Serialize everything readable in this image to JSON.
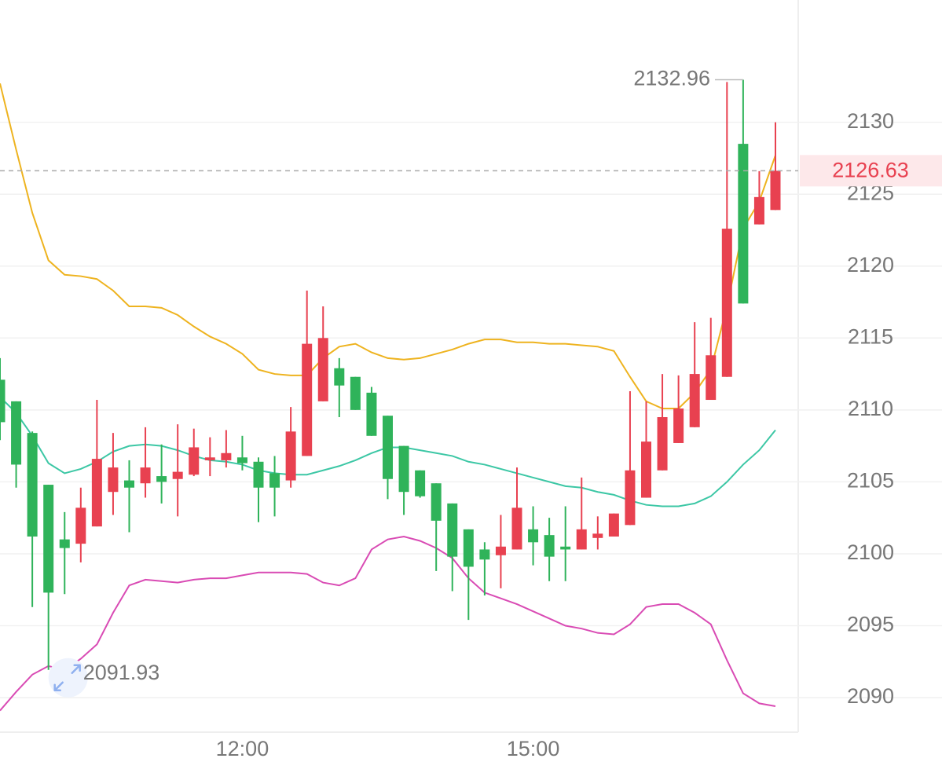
{
  "chart_data": {
    "type": "candlestick",
    "categories": [
      null,
      null,
      null,
      null,
      null,
      null,
      null,
      null,
      null,
      null,
      null,
      null,
      null,
      null,
      null,
      "12:00",
      null,
      null,
      null,
      null,
      null,
      null,
      null,
      null,
      null,
      null,
      null,
      null,
      null,
      null,
      null,
      null,
      null,
      "15:00",
      null,
      null,
      null,
      null,
      null,
      null,
      null,
      null,
      null,
      null,
      null,
      null,
      null,
      null,
      null
    ],
    "open": [
      2112.1,
      2110.6,
      2108.4,
      2104.8,
      2101.0,
      2100.7,
      2101.9,
      2104.3,
      2105.1,
      2104.9,
      2105.4,
      2105.2,
      2105.5,
      2106.5,
      2106.5,
      2106.7,
      2106.4,
      2105.6,
      2105.1,
      2106.8,
      2110.6,
      2112.9,
      2112.3,
      2111.2,
      2109.6,
      2107.5,
      2105.8,
      2104.9,
      2103.5,
      2101.7,
      2100.3,
      2099.9,
      2100.3,
      2101.7,
      2101.3,
      2100.5,
      2100.3,
      2101.1,
      2101.2,
      2102.0,
      2103.9,
      2105.8,
      2107.7,
      2108.8,
      2110.7,
      2112.3,
      2128.5,
      2122.9,
      2123.9
    ],
    "high": [
      2113.6,
      2110.6,
      2108.5,
      2104.8,
      2102.9,
      2104.6,
      2110.7,
      2108.4,
      2106.5,
      2108.8,
      2107.6,
      2109.0,
      2108.7,
      2108.1,
      2108.6,
      2108.2,
      2106.7,
      2106.8,
      2110.2,
      2118.3,
      2117.2,
      2113.6,
      2112.3,
      2111.6,
      2109.6,
      2107.5,
      2105.8,
      2104.9,
      2103.5,
      2101.7,
      2100.8,
      2102.7,
      2106.0,
      2103.3,
      2102.5,
      2103.3,
      2105.3,
      2102.6,
      2102.8,
      2111.3,
      2110.6,
      2112.5,
      2112.4,
      2116.1,
      2116.4,
      2132.8,
      2132.96,
      2126.6,
      2130.0
    ],
    "low": [
      2107.9,
      2104.6,
      2096.3,
      2091.93,
      2097.2,
      2099.4,
      2101.9,
      2102.7,
      2101.5,
      2103.9,
      2103.5,
      2102.6,
      2105.4,
      2105.4,
      2106.0,
      2105.8,
      2102.2,
      2102.6,
      2104.6,
      2106.8,
      2110.6,
      2109.5,
      2110.0,
      2108.2,
      2103.8,
      2102.7,
      2103.9,
      2098.8,
      2097.4,
      2095.4,
      2097.1,
      2097.6,
      2100.3,
      2099.2,
      2098.1,
      2098.1,
      2100.3,
      2100.3,
      2101.2,
      2102.0,
      2103.9,
      2105.8,
      2107.7,
      2108.8,
      2110.7,
      2112.3,
      2117.4,
      2122.9,
      2123.9
    ],
    "close": [
      2109.15,
      2106.2,
      2101.2,
      2097.3,
      2100.4,
      2103.2,
      2106.6,
      2106.0,
      2104.6,
      2106.0,
      2105.0,
      2105.7,
      2107.4,
      2106.7,
      2107.0,
      2106.3,
      2104.6,
      2104.6,
      2108.5,
      2114.6,
      2115.0,
      2111.7,
      2110.0,
      2108.2,
      2105.2,
      2104.3,
      2104.0,
      2102.3,
      2099.8,
      2099.1,
      2099.6,
      2100.5,
      2103.2,
      2100.8,
      2099.8,
      2100.3,
      2101.7,
      2101.4,
      2102.8,
      2105.8,
      2107.8,
      2109.5,
      2110.1,
      2112.5,
      2113.8,
      2122.6,
      2117.4,
      2124.8,
      2126.63
    ],
    "up_color": "#e84150",
    "down_color": "#2fb35a",
    "lines": [
      {
        "color": "#eeb31f",
        "values": [
          2132.7,
          2128.1,
          2123.7,
          2120.4,
          2119.4,
          2119.3,
          2119.1,
          2118.3,
          2117.2,
          2117.2,
          2117.1,
          2116.6,
          2115.8,
          2115.1,
          2114.6,
          2113.9,
          2112.8,
          2112.5,
          2112.4,
          2112.4,
          2113.6,
          2114.4,
          2114.6,
          2114.0,
          2113.6,
          2113.5,
          2113.6,
          2113.9,
          2114.2,
          2114.6,
          2114.9,
          2114.9,
          2114.7,
          2114.7,
          2114.6,
          2114.6,
          2114.5,
          2114.4,
          2114.1,
          2112.3,
          2110.6,
          2110.1,
          2110.1,
          2111.2,
          2112.8,
          2117.2,
          2122.6,
          2124.5,
          2127.7
        ]
      },
      {
        "color": "#3cc7a5",
        "values": [
          2110.9,
          2109.8,
          2108.2,
          2106.3,
          2105.6,
          2105.9,
          2106.4,
          2107.1,
          2107.5,
          2107.6,
          2107.5,
          2107.2,
          2106.8,
          2106.5,
          2106.4,
          2106.2,
          2105.8,
          2105.6,
          2105.5,
          2105.5,
          2105.8,
          2106.1,
          2106.5,
          2107.0,
          2107.4,
          2107.4,
          2107.2,
          2107.0,
          2106.8,
          2106.4,
          2106.2,
          2105.9,
          2105.6,
          2105.3,
          2105.0,
          2104.7,
          2104.6,
          2104.3,
          2104.1,
          2103.7,
          2103.4,
          2103.3,
          2103.3,
          2103.5,
          2104.0,
          2105.0,
          2106.2,
          2107.2,
          2108.6
        ]
      },
      {
        "color": "#d94bb4",
        "values": [
          2089.1,
          2090.4,
          2091.6,
          2092.2,
          2091.9,
          2092.7,
          2093.7,
          2095.9,
          2097.8,
          2098.2,
          2098.1,
          2098.0,
          2098.2,
          2098.3,
          2098.3,
          2098.5,
          2098.7,
          2098.7,
          2098.7,
          2098.6,
          2098.0,
          2097.8,
          2098.3,
          2100.3,
          2101.0,
          2101.2,
          2100.9,
          2100.4,
          2099.7,
          2098.3,
          2097.3,
          2096.9,
          2096.5,
          2096.0,
          2095.5,
          2095.0,
          2094.8,
          2094.5,
          2094.4,
          2095.1,
          2096.3,
          2096.5,
          2096.5,
          2095.9,
          2095.1,
          2092.6,
          2090.3,
          2089.6,
          2089.4
        ]
      }
    ],
    "ylim": [
      2087.6,
      2138.5
    ],
    "yticks": [
      2090,
      2095,
      2100,
      2105,
      2110,
      2115,
      2120,
      2125,
      2130
    ],
    "grid": true
  }
}
